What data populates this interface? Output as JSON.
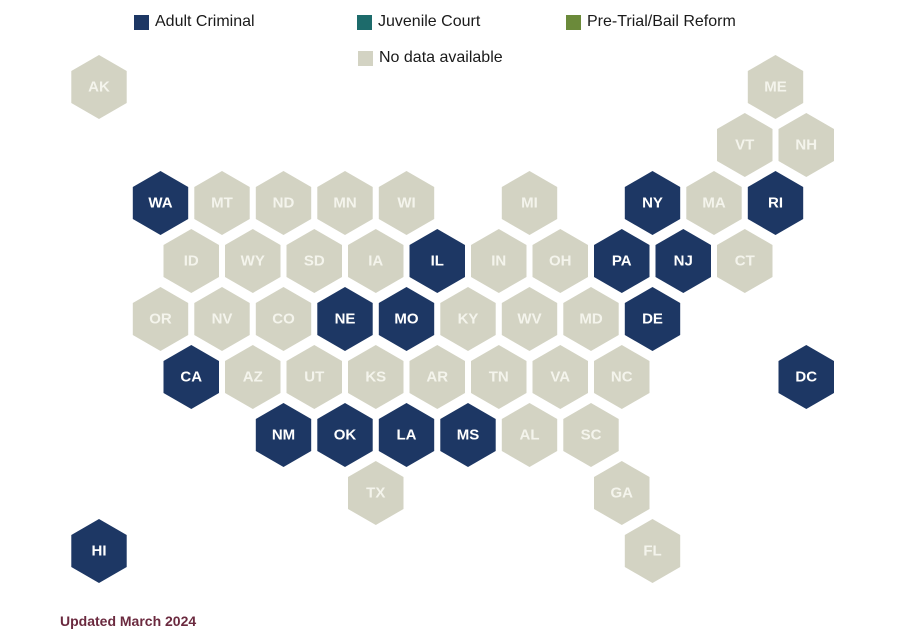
{
  "colors": {
    "adult_criminal": "#1d3764",
    "juvenile_court": "#1d6b6b",
    "pretrial": "#6b8a3a",
    "no_data": "#d3d3c3",
    "label_dark": "#ffffff",
    "label_light": "#f4f4ec"
  },
  "legend": [
    {
      "key": "adult_criminal",
      "label": "Adult Criminal"
    },
    {
      "key": "juvenile_court",
      "label": "Juvenile Court"
    },
    {
      "key": "pretrial",
      "label": "Pre-Trial/Bail Reform"
    },
    {
      "key": "no_data",
      "label": "No data available"
    }
  ],
  "states": [
    {
      "abbr": "AK",
      "row": 0,
      "col": 0,
      "category": "no_data"
    },
    {
      "abbr": "ME",
      "row": 0,
      "col": 11,
      "category": "no_data"
    },
    {
      "abbr": "VT",
      "row": 1,
      "col": 10,
      "category": "no_data"
    },
    {
      "abbr": "NH",
      "row": 1,
      "col": 11,
      "category": "no_data"
    },
    {
      "abbr": "WA",
      "row": 2,
      "col": 1,
      "category": "adult_criminal"
    },
    {
      "abbr": "MT",
      "row": 2,
      "col": 2,
      "category": "no_data"
    },
    {
      "abbr": "ND",
      "row": 2,
      "col": 3,
      "category": "no_data"
    },
    {
      "abbr": "MN",
      "row": 2,
      "col": 4,
      "category": "no_data"
    },
    {
      "abbr": "WI",
      "row": 2,
      "col": 5,
      "category": "no_data"
    },
    {
      "abbr": "MI",
      "row": 2,
      "col": 7,
      "category": "no_data"
    },
    {
      "abbr": "NY",
      "row": 2,
      "col": 9,
      "category": "adult_criminal"
    },
    {
      "abbr": "MA",
      "row": 2,
      "col": 10,
      "category": "no_data"
    },
    {
      "abbr": "RI",
      "row": 2,
      "col": 11,
      "category": "adult_criminal"
    },
    {
      "abbr": "ID",
      "row": 3,
      "col": 1,
      "category": "no_data"
    },
    {
      "abbr": "WY",
      "row": 3,
      "col": 2,
      "category": "no_data"
    },
    {
      "abbr": "SD",
      "row": 3,
      "col": 3,
      "category": "no_data"
    },
    {
      "abbr": "IA",
      "row": 3,
      "col": 4,
      "category": "no_data"
    },
    {
      "abbr": "IL",
      "row": 3,
      "col": 5,
      "category": "adult_criminal"
    },
    {
      "abbr": "IN",
      "row": 3,
      "col": 6,
      "category": "no_data"
    },
    {
      "abbr": "OH",
      "row": 3,
      "col": 7,
      "category": "no_data"
    },
    {
      "abbr": "PA",
      "row": 3,
      "col": 8,
      "category": "adult_criminal"
    },
    {
      "abbr": "NJ",
      "row": 3,
      "col": 9,
      "category": "adult_criminal"
    },
    {
      "abbr": "CT",
      "row": 3,
      "col": 10,
      "category": "no_data"
    },
    {
      "abbr": "OR",
      "row": 4,
      "col": 1,
      "category": "no_data"
    },
    {
      "abbr": "NV",
      "row": 4,
      "col": 2,
      "category": "no_data"
    },
    {
      "abbr": "CO",
      "row": 4,
      "col": 3,
      "category": "no_data"
    },
    {
      "abbr": "NE",
      "row": 4,
      "col": 4,
      "category": "adult_criminal"
    },
    {
      "abbr": "MO",
      "row": 4,
      "col": 5,
      "category": "adult_criminal"
    },
    {
      "abbr": "KY",
      "row": 4,
      "col": 6,
      "category": "no_data"
    },
    {
      "abbr": "WV",
      "row": 4,
      "col": 7,
      "category": "no_data"
    },
    {
      "abbr": "MD",
      "row": 4,
      "col": 8,
      "category": "no_data"
    },
    {
      "abbr": "DE",
      "row": 4,
      "col": 9,
      "category": "adult_criminal"
    },
    {
      "abbr": "CA",
      "row": 5,
      "col": 1,
      "category": "adult_criminal"
    },
    {
      "abbr": "AZ",
      "row": 5,
      "col": 2,
      "category": "no_data"
    },
    {
      "abbr": "UT",
      "row": 5,
      "col": 3,
      "category": "no_data"
    },
    {
      "abbr": "KS",
      "row": 5,
      "col": 4,
      "category": "no_data"
    },
    {
      "abbr": "AR",
      "row": 5,
      "col": 5,
      "category": "no_data"
    },
    {
      "abbr": "TN",
      "row": 5,
      "col": 6,
      "category": "no_data"
    },
    {
      "abbr": "VA",
      "row": 5,
      "col": 7,
      "category": "no_data"
    },
    {
      "abbr": "NC",
      "row": 5,
      "col": 8,
      "category": "no_data"
    },
    {
      "abbr": "DC",
      "row": 5,
      "col": 11,
      "category": "adult_criminal"
    },
    {
      "abbr": "NM",
      "row": 6,
      "col": 3,
      "category": "adult_criminal"
    },
    {
      "abbr": "OK",
      "row": 6,
      "col": 4,
      "category": "adult_criminal"
    },
    {
      "abbr": "LA",
      "row": 6,
      "col": 5,
      "category": "adult_criminal"
    },
    {
      "abbr": "MS",
      "row": 6,
      "col": 6,
      "category": "adult_criminal"
    },
    {
      "abbr": "AL",
      "row": 6,
      "col": 7,
      "category": "no_data"
    },
    {
      "abbr": "SC",
      "row": 6,
      "col": 8,
      "category": "no_data"
    },
    {
      "abbr": "TX",
      "row": 7,
      "col": 4,
      "category": "no_data"
    },
    {
      "abbr": "GA",
      "row": 7,
      "col": 8,
      "category": "no_data"
    },
    {
      "abbr": "HI",
      "row": 8,
      "col": 0,
      "category": "adult_criminal"
    },
    {
      "abbr": "FL",
      "row": 8,
      "col": 9,
      "category": "no_data"
    }
  ],
  "footer": "Updated March 2024"
}
